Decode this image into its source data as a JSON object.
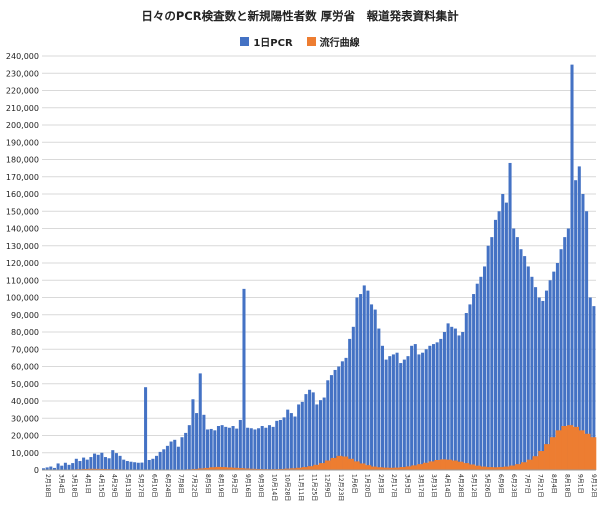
{
  "chart_data": {
    "type": "bar",
    "title": "日々のPCR検査数と新規陽性者数 厚労省　報道発表資料集計",
    "ylim": [
      0,
      240000
    ],
    "yticks": [
      "0",
      "10,000",
      "20,000",
      "30,000",
      "40,000",
      "50,000",
      "60,000",
      "70,000",
      "80,000",
      "90,000",
      "100,000",
      "110,000",
      "120,000",
      "130,000",
      "140,000",
      "150,000",
      "160,000",
      "170,000",
      "180,000",
      "190,000",
      "200,000",
      "210,000",
      "220,000",
      "230,000",
      "240,000"
    ],
    "grid": true,
    "legend_position": "top",
    "colors": {
      "pcr": "#4472C4",
      "positive": "#ED7D31",
      "grid": "#D9D9D9"
    },
    "xticks": [
      "2月18日",
      "3月4日",
      "3月18日",
      "4月1日",
      "4月15日",
      "4月29日",
      "5月13日",
      "5月27日",
      "6月10日",
      "6月24日",
      "7月8日",
      "7月22日",
      "8月5日",
      "8月19日",
      "9月2日",
      "9月16日",
      "9月30日",
      "10月14日",
      "10月28日",
      "11月11日",
      "11月25日",
      "12月9日",
      "12月23日",
      "1月6日",
      "1月20日",
      "2月3日",
      "2月17日",
      "3月3日",
      "3月17日",
      "3月31日",
      "4月14日",
      "4月28日",
      "5月12日",
      "5月26日",
      "6月9日",
      "6月23日",
      "7月7日",
      "7月21日",
      "8月4日",
      "8月18日",
      "9月1日",
      "9月12日"
    ],
    "series": [
      {
        "name": "1日PCR",
        "values": [
          1000,
          1500,
          2000,
          1200,
          3800,
          2500,
          4200,
          3000,
          4000,
          6500,
          5200,
          7200,
          6000,
          7500,
          9500,
          8800,
          10000,
          7500,
          6800,
          11500,
          9800,
          8200,
          6000,
          5200,
          4800,
          4500,
          4200,
          4300,
          48000,
          5800,
          6500,
          8200,
          10500,
          12000,
          14000,
          16500,
          17500,
          13500,
          19000,
          21500,
          26000,
          41000,
          33000,
          56000,
          32000,
          23500,
          23800,
          23000,
          25500,
          26000,
          25000,
          24500,
          25500,
          24000,
          29000,
          105000,
          24500,
          24200,
          23500,
          24200,
          25500,
          24500,
          26000,
          25000,
          28500,
          29000,
          30500,
          35000,
          33000,
          31000,
          38000,
          39500,
          44000,
          46500,
          45000,
          38000,
          40500,
          42000,
          52000,
          55000,
          58000,
          60000,
          63000,
          65000,
          76000,
          83000,
          100000,
          102000,
          107000,
          104000,
          96000,
          93000,
          82000,
          72000,
          64000,
          66000,
          67000,
          68000,
          62000,
          64000,
          66000,
          72000,
          73000,
          67000,
          68000,
          70000,
          72000,
          73000,
          74000,
          76000,
          80000,
          85000,
          83000,
          82000,
          78000,
          80000,
          91000,
          96000,
          102000,
          108000,
          112000,
          118000,
          130000,
          135000,
          145000,
          150000,
          160000,
          155000,
          178000,
          140000,
          135000,
          128000,
          124000,
          118000,
          112000,
          106000,
          100000,
          98000,
          104000,
          110000,
          115000,
          120000,
          128000,
          135000,
          140000,
          235000,
          168000,
          176000,
          160000,
          150000,
          100000,
          95000
        ],
        "ylabel_text": ""
      },
      {
        "name": "流行曲線",
        "values": [
          100,
          120,
          150,
          180,
          250,
          350,
          450,
          600,
          700,
          650,
          600,
          500,
          400,
          350,
          300,
          250,
          200,
          180,
          150,
          120,
          100,
          90,
          100,
          150,
          250,
          400,
          600,
          900,
          1200,
          1600,
          1800,
          1700,
          1500,
          1300,
          1100,
          900,
          700,
          600,
          500,
          450,
          500,
          600,
          800,
          1000,
          1300,
          1700,
          2200,
          3000,
          4000,
          5500,
          7000,
          8200,
          7800,
          6500,
          5000,
          3800,
          2800,
          2000,
          1600,
          1400,
          1300,
          1400,
          1700,
          2100,
          2700,
          3400,
          4200,
          5000,
          5800,
          6200,
          6000,
          5500,
          4800,
          4000,
          3200,
          2500,
          2000,
          1700,
          1600,
          1700,
          2000,
          2600,
          3400,
          4500,
          6000,
          8000,
          11000,
          15000,
          19000,
          23000,
          25500,
          26000,
          25000,
          23000,
          21000,
          19000
        ],
        "ylabel_text": ""
      }
    ]
  }
}
